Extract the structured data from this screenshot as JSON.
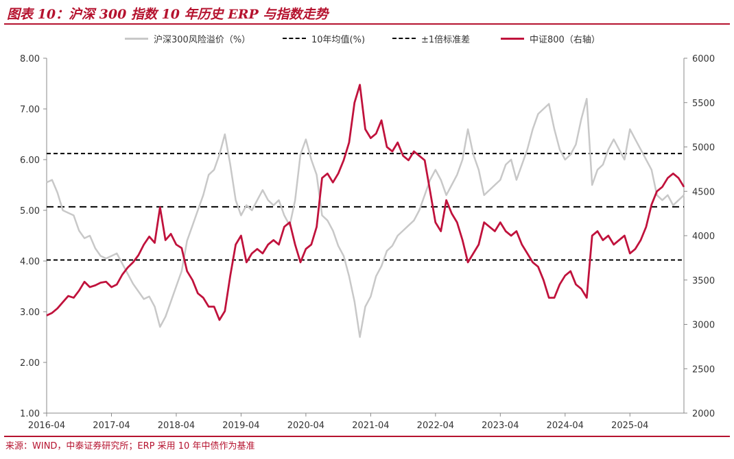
{
  "header": {
    "title": "图表 10：沪深 300 指数 10 年历史 ERP 与指数走势"
  },
  "footer": {
    "source": "来源：WIND，中泰证券研究所；ERP 采用 10 年中债作为基准"
  },
  "legend": {
    "erp": "沪深300风险溢价（%）",
    "mean": "10年均值(%)",
    "band": "±1倍标准差",
    "index": "中证800（右轴）"
  },
  "colors": {
    "erp": "#c8c8c8",
    "index": "#c0123c",
    "ref": "#000000",
    "accent": "#b5122e"
  },
  "chart_data": {
    "type": "line",
    "x_ticks": [
      "2016-04",
      "2017-04",
      "2018-04",
      "2019-04",
      "2020-04",
      "2021-04",
      "2022-04",
      "2023-04",
      "2024-04",
      "2025-04"
    ],
    "y_left": {
      "min": 1.0,
      "max": 8.0,
      "ticks": [
        "1.00",
        "2.00",
        "3.00",
        "4.00",
        "5.00",
        "6.00",
        "7.00",
        "8.00"
      ]
    },
    "y_right": {
      "min": 2000,
      "max": 6000,
      "ticks": [
        "2000",
        "2500",
        "3000",
        "3500",
        "4000",
        "4500",
        "5000",
        "5500",
        "6000"
      ]
    },
    "reference_lines": {
      "mean": 5.07,
      "upper": 6.12,
      "lower": 4.02
    },
    "x_start": "2016-04",
    "series": [
      {
        "name": "沪深300风险溢价（%）",
        "axis": "left",
        "points": [
          [
            "2016-04",
            5.55
          ],
          [
            "2016-05",
            5.6
          ],
          [
            "2016-06",
            5.35
          ],
          [
            "2016-07",
            5.0
          ],
          [
            "2016-08",
            4.95
          ],
          [
            "2016-09",
            4.9
          ],
          [
            "2016-10",
            4.6
          ],
          [
            "2016-11",
            4.45
          ],
          [
            "2016-12",
            4.5
          ],
          [
            "2017-01",
            4.25
          ],
          [
            "2017-02",
            4.1
          ],
          [
            "2017-03",
            4.05
          ],
          [
            "2017-04",
            4.1
          ],
          [
            "2017-05",
            4.15
          ],
          [
            "2017-06",
            3.95
          ],
          [
            "2017-07",
            3.75
          ],
          [
            "2017-08",
            3.55
          ],
          [
            "2017-09",
            3.4
          ],
          [
            "2017-10",
            3.25
          ],
          [
            "2017-11",
            3.3
          ],
          [
            "2017-12",
            3.1
          ],
          [
            "2018-01",
            2.7
          ],
          [
            "2018-02",
            2.9
          ],
          [
            "2018-03",
            3.2
          ],
          [
            "2018-04",
            3.5
          ],
          [
            "2018-05",
            3.8
          ],
          [
            "2018-06",
            4.4
          ],
          [
            "2018-07",
            4.7
          ],
          [
            "2018-08",
            5.0
          ],
          [
            "2018-09",
            5.3
          ],
          [
            "2018-10",
            5.7
          ],
          [
            "2018-11",
            5.8
          ],
          [
            "2018-12",
            6.1
          ],
          [
            "2019-01",
            6.5
          ],
          [
            "2019-02",
            5.9
          ],
          [
            "2019-03",
            5.2
          ],
          [
            "2019-04",
            4.9
          ],
          [
            "2019-05",
            5.1
          ],
          [
            "2019-06",
            5.0
          ],
          [
            "2019-07",
            5.2
          ],
          [
            "2019-08",
            5.4
          ],
          [
            "2019-09",
            5.2
          ],
          [
            "2019-10",
            5.1
          ],
          [
            "2019-11",
            5.2
          ],
          [
            "2019-12",
            4.9
          ],
          [
            "2020-01",
            4.7
          ],
          [
            "2020-02",
            5.2
          ],
          [
            "2020-03",
            6.1
          ],
          [
            "2020-04",
            6.4
          ],
          [
            "2020-05",
            6.0
          ],
          [
            "2020-06",
            5.7
          ],
          [
            "2020-07",
            4.9
          ],
          [
            "2020-08",
            4.8
          ],
          [
            "2020-09",
            4.6
          ],
          [
            "2020-10",
            4.3
          ],
          [
            "2020-11",
            4.1
          ],
          [
            "2020-12",
            3.7
          ],
          [
            "2021-01",
            3.2
          ],
          [
            "2021-02",
            2.5
          ],
          [
            "2021-03",
            3.1
          ],
          [
            "2021-04",
            3.3
          ],
          [
            "2021-05",
            3.7
          ],
          [
            "2021-06",
            3.9
          ],
          [
            "2021-07",
            4.2
          ],
          [
            "2021-08",
            4.3
          ],
          [
            "2021-09",
            4.5
          ],
          [
            "2021-10",
            4.6
          ],
          [
            "2021-11",
            4.7
          ],
          [
            "2021-12",
            4.8
          ],
          [
            "2022-01",
            5.0
          ],
          [
            "2022-02",
            5.3
          ],
          [
            "2022-03",
            5.6
          ],
          [
            "2022-04",
            5.8
          ],
          [
            "2022-05",
            5.6
          ],
          [
            "2022-06",
            5.3
          ],
          [
            "2022-07",
            5.5
          ],
          [
            "2022-08",
            5.7
          ],
          [
            "2022-09",
            6.0
          ],
          [
            "2022-10",
            6.6
          ],
          [
            "2022-11",
            6.1
          ],
          [
            "2022-12",
            5.8
          ],
          [
            "2023-01",
            5.3
          ],
          [
            "2023-02",
            5.4
          ],
          [
            "2023-03",
            5.5
          ],
          [
            "2023-04",
            5.6
          ],
          [
            "2023-05",
            5.9
          ],
          [
            "2023-06",
            6.0
          ],
          [
            "2023-07",
            5.6
          ],
          [
            "2023-08",
            5.9
          ],
          [
            "2023-09",
            6.2
          ],
          [
            "2023-10",
            6.6
          ],
          [
            "2023-11",
            6.9
          ],
          [
            "2023-12",
            7.0
          ],
          [
            "2024-01",
            7.1
          ],
          [
            "2024-02",
            6.6
          ],
          [
            "2024-03",
            6.2
          ],
          [
            "2024-04",
            6.0
          ],
          [
            "2024-05",
            6.1
          ],
          [
            "2024-06",
            6.3
          ],
          [
            "2024-07",
            6.8
          ],
          [
            "2024-08",
            7.2
          ],
          [
            "2024-09",
            5.5
          ],
          [
            "2024-10",
            5.8
          ],
          [
            "2024-11",
            5.9
          ],
          [
            "2024-12",
            6.2
          ],
          [
            "2025-01",
            6.4
          ],
          [
            "2025-02",
            6.2
          ],
          [
            "2025-03",
            6.0
          ],
          [
            "2025-04",
            6.6
          ],
          [
            "2025-05",
            6.4
          ],
          [
            "2025-06",
            6.2
          ],
          [
            "2025-07",
            6.0
          ],
          [
            "2025-08",
            5.8
          ],
          [
            "2025-09",
            5.3
          ],
          [
            "2025-10",
            5.2
          ],
          [
            "2025-11",
            5.3
          ],
          [
            "2025-12",
            5.1
          ],
          [
            "2026-01",
            5.2
          ],
          [
            "2026-02",
            5.3
          ]
        ]
      },
      {
        "name": "中证800（右轴）",
        "axis": "right",
        "points": [
          [
            "2016-04",
            3100
          ],
          [
            "2016-05",
            3130
          ],
          [
            "2016-06",
            3180
          ],
          [
            "2016-07",
            3250
          ],
          [
            "2016-08",
            3320
          ],
          [
            "2016-09",
            3300
          ],
          [
            "2016-10",
            3380
          ],
          [
            "2016-11",
            3480
          ],
          [
            "2016-12",
            3420
          ],
          [
            "2017-01",
            3440
          ],
          [
            "2017-02",
            3470
          ],
          [
            "2017-03",
            3480
          ],
          [
            "2017-04",
            3420
          ],
          [
            "2017-05",
            3450
          ],
          [
            "2017-06",
            3560
          ],
          [
            "2017-07",
            3640
          ],
          [
            "2017-08",
            3700
          ],
          [
            "2017-09",
            3780
          ],
          [
            "2017-10",
            3900
          ],
          [
            "2017-11",
            3990
          ],
          [
            "2017-12",
            3920
          ],
          [
            "2018-01",
            4320
          ],
          [
            "2018-02",
            3950
          ],
          [
            "2018-03",
            4020
          ],
          [
            "2018-04",
            3900
          ],
          [
            "2018-05",
            3860
          ],
          [
            "2018-06",
            3600
          ],
          [
            "2018-07",
            3500
          ],
          [
            "2018-08",
            3350
          ],
          [
            "2018-09",
            3300
          ],
          [
            "2018-10",
            3200
          ],
          [
            "2018-11",
            3200
          ],
          [
            "2018-12",
            3050
          ],
          [
            "2019-01",
            3150
          ],
          [
            "2019-02",
            3550
          ],
          [
            "2019-03",
            3900
          ],
          [
            "2019-04",
            4000
          ],
          [
            "2019-05",
            3700
          ],
          [
            "2019-06",
            3800
          ],
          [
            "2019-07",
            3850
          ],
          [
            "2019-08",
            3800
          ],
          [
            "2019-09",
            3900
          ],
          [
            "2019-10",
            3950
          ],
          [
            "2019-11",
            3900
          ],
          [
            "2019-12",
            4100
          ],
          [
            "2020-01",
            4150
          ],
          [
            "2020-02",
            3900
          ],
          [
            "2020-03",
            3700
          ],
          [
            "2020-04",
            3850
          ],
          [
            "2020-05",
            3900
          ],
          [
            "2020-06",
            4100
          ],
          [
            "2020-07",
            4650
          ],
          [
            "2020-08",
            4700
          ],
          [
            "2020-09",
            4600
          ],
          [
            "2020-10",
            4700
          ],
          [
            "2020-11",
            4850
          ],
          [
            "2020-12",
            5050
          ],
          [
            "2021-01",
            5500
          ],
          [
            "2021-02",
            5700
          ],
          [
            "2021-03",
            5200
          ],
          [
            "2021-04",
            5100
          ],
          [
            "2021-05",
            5150
          ],
          [
            "2021-06",
            5300
          ],
          [
            "2021-07",
            5000
          ],
          [
            "2021-08",
            4950
          ],
          [
            "2021-09",
            5050
          ],
          [
            "2021-10",
            4900
          ],
          [
            "2021-11",
            4850
          ],
          [
            "2021-12",
            4950
          ],
          [
            "2022-01",
            4900
          ],
          [
            "2022-02",
            4850
          ],
          [
            "2022-03",
            4500
          ],
          [
            "2022-04",
            4150
          ],
          [
            "2022-05",
            4050
          ],
          [
            "2022-06",
            4400
          ],
          [
            "2022-07",
            4250
          ],
          [
            "2022-08",
            4150
          ],
          [
            "2022-09",
            3950
          ],
          [
            "2022-10",
            3700
          ],
          [
            "2022-11",
            3800
          ],
          [
            "2022-12",
            3900
          ],
          [
            "2023-01",
            4150
          ],
          [
            "2023-02",
            4100
          ],
          [
            "2023-03",
            4050
          ],
          [
            "2023-04",
            4150
          ],
          [
            "2023-05",
            4050
          ],
          [
            "2023-06",
            4000
          ],
          [
            "2023-07",
            4050
          ],
          [
            "2023-08",
            3900
          ],
          [
            "2023-09",
            3800
          ],
          [
            "2023-10",
            3700
          ],
          [
            "2023-11",
            3650
          ],
          [
            "2023-12",
            3500
          ],
          [
            "2024-01",
            3300
          ],
          [
            "2024-02",
            3300
          ],
          [
            "2024-03",
            3450
          ],
          [
            "2024-04",
            3550
          ],
          [
            "2024-05",
            3600
          ],
          [
            "2024-06",
            3450
          ],
          [
            "2024-07",
            3400
          ],
          [
            "2024-08",
            3300
          ],
          [
            "2024-09",
            4000
          ],
          [
            "2024-10",
            4050
          ],
          [
            "2024-11",
            3950
          ],
          [
            "2024-12",
            4000
          ],
          [
            "2025-01",
            3900
          ],
          [
            "2025-02",
            3950
          ],
          [
            "2025-03",
            4000
          ],
          [
            "2025-04",
            3800
          ],
          [
            "2025-05",
            3850
          ],
          [
            "2025-06",
            3950
          ],
          [
            "2025-07",
            4100
          ],
          [
            "2025-08",
            4350
          ],
          [
            "2025-09",
            4500
          ],
          [
            "2025-10",
            4550
          ],
          [
            "2025-11",
            4650
          ],
          [
            "2025-12",
            4700
          ],
          [
            "2026-01",
            4650
          ],
          [
            "2026-02",
            4550
          ]
        ]
      }
    ]
  }
}
